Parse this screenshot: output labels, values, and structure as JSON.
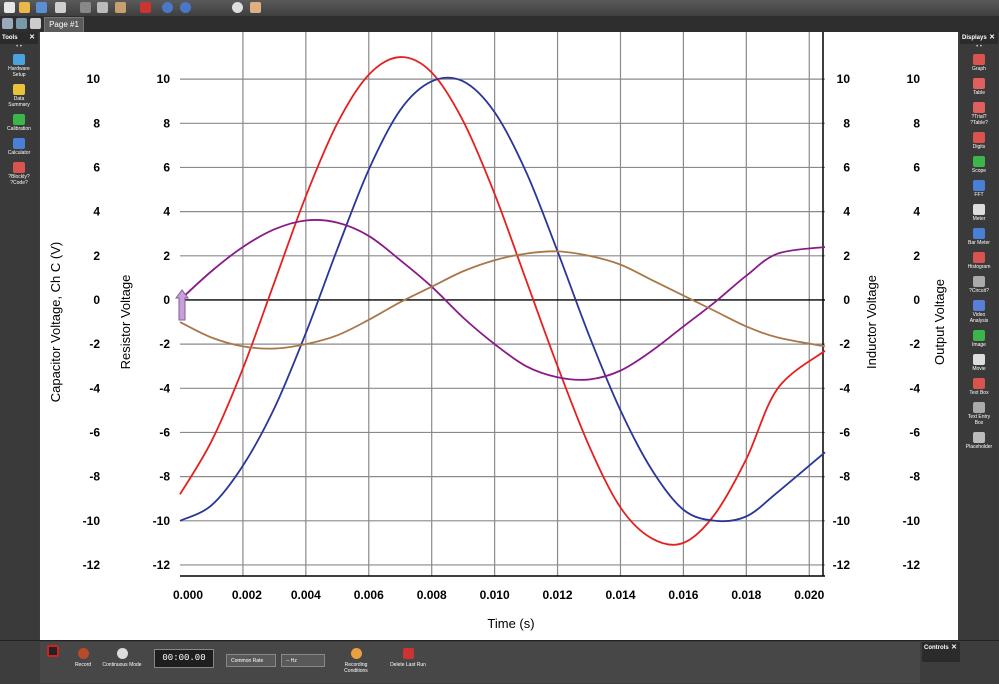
{
  "tabs": {
    "page": "Page #1"
  },
  "tools": {
    "title": "Tools",
    "close": "✕",
    "items": [
      {
        "label1": "Hardware",
        "label2": "Setup",
        "icon": "hardware-setup-icon",
        "color": "#4aa3df"
      },
      {
        "label1": "Data",
        "label2": "Summary",
        "icon": "data-summary-icon",
        "color": "#e8c33a"
      },
      {
        "label1": "Calibration",
        "label2": "",
        "icon": "calibration-icon",
        "color": "#3cb54a"
      },
      {
        "label1": "Calculator",
        "label2": "",
        "icon": "calculator-icon",
        "color": "#4a7fd6"
      },
      {
        "label1": "?Blockly?",
        "label2": "?Code?",
        "icon": "blockly-icon",
        "color": "#d9534f"
      }
    ]
  },
  "displays": {
    "title": "Displays",
    "close": "✕",
    "items": [
      {
        "label1": "Graph",
        "label2": "",
        "icon": "graph-icon",
        "color": "#d9534f"
      },
      {
        "label1": "Table",
        "label2": "",
        "icon": "table-icon",
        "color": "#e06060"
      },
      {
        "label1": "?Trial?",
        "label2": "?Table?",
        "icon": "trial-table-icon",
        "color": "#e06060"
      },
      {
        "label1": "Digits",
        "label2": "",
        "icon": "digits-icon",
        "color": "#d9534f"
      },
      {
        "label1": "Scope",
        "label2": "",
        "icon": "scope-icon",
        "color": "#3cb54a"
      },
      {
        "label1": "FFT",
        "label2": "",
        "icon": "fft-icon",
        "color": "#4a7fd6"
      },
      {
        "label1": "Meter",
        "label2": "",
        "icon": "meter-icon",
        "color": "#dddddd"
      },
      {
        "label1": "Bar Meter",
        "label2": "",
        "icon": "bar-meter-icon",
        "color": "#4a7fd6"
      },
      {
        "label1": "Histogram",
        "label2": "",
        "icon": "histogram-icon",
        "color": "#d9534f"
      },
      {
        "label1": "?Circuit?",
        "label2": "",
        "icon": "circuit-icon",
        "color": "#aaaaaa"
      },
      {
        "label1": "Video",
        "label2": "Analysis",
        "icon": "video-analysis-icon",
        "color": "#5a7fd6"
      },
      {
        "label1": "Image",
        "label2": "",
        "icon": "image-icon",
        "color": "#3cb54a"
      },
      {
        "label1": "Movie",
        "label2": "",
        "icon": "movie-icon",
        "color": "#dddddd"
      },
      {
        "label1": "Text Box",
        "label2": "",
        "icon": "text-box-icon",
        "color": "#d9534f"
      },
      {
        "label1": "Text Entry",
        "label2": "Box",
        "icon": "text-entry-icon",
        "color": "#aaaaaa"
      },
      {
        "label1": "Placeholder",
        "label2": "",
        "icon": "placeholder-icon",
        "color": "#bbbbbb"
      }
    ]
  },
  "controls": {
    "title": "Controls",
    "record": "Record",
    "mode": "Continuous Mode",
    "time": "00:00.00",
    "rate": "Common Rate",
    "hz": "-- Hz",
    "conditions1": "Recording",
    "conditions2": "Conditions",
    "delete": "Delete Last Run"
  },
  "chart_data": {
    "type": "line",
    "xlabel": "Time (s)",
    "ylabel_left_outer": "Capacitor Voltage, Ch C (V)",
    "ylabel_left_inner": "Resistor Voltage",
    "ylabel_right_inner": "Inductor Voltage",
    "ylabel_right_outer": "Output Voltage",
    "xlim": [
      0.0,
      0.0205
    ],
    "ylim": [
      -12.5,
      11.5
    ],
    "x_ticks": [
      "0.000",
      "0.002",
      "0.004",
      "0.006",
      "0.008",
      "0.010",
      "0.012",
      "0.014",
      "0.016",
      "0.018",
      "0.020"
    ],
    "y_ticks": [
      10,
      8,
      6,
      4,
      2,
      0,
      -2,
      -4,
      -6,
      -8,
      -10,
      -12
    ],
    "grid": true,
    "series": [
      {
        "color": "#e62020",
        "x": [
          0.0,
          0.001,
          0.002,
          0.003,
          0.004,
          0.005,
          0.006,
          0.007,
          0.008,
          0.009,
          0.01,
          0.011,
          0.012,
          0.013,
          0.014,
          0.015,
          0.016,
          0.017,
          0.018,
          0.019,
          0.0205
        ],
        "values": [
          -8.8,
          -6.4,
          -3.1,
          0.8,
          4.7,
          8.0,
          10.2,
          11.0,
          10.3,
          8.1,
          4.8,
          0.9,
          -3.0,
          -6.6,
          -9.4,
          -10.8,
          -11.0,
          -9.7,
          -7.2,
          -4.0,
          -2.3
        ]
      },
      {
        "color": "#2a3699",
        "x": [
          0.0,
          0.001,
          0.002,
          0.003,
          0.004,
          0.005,
          0.006,
          0.007,
          0.008,
          0.009,
          0.01,
          0.011,
          0.012,
          0.013,
          0.014,
          0.015,
          0.016,
          0.017,
          0.018,
          0.019,
          0.0205
        ],
        "values": [
          -10.0,
          -9.3,
          -7.5,
          -4.9,
          -1.5,
          2.3,
          5.9,
          8.6,
          9.9,
          9.9,
          8.5,
          5.8,
          2.2,
          -1.6,
          -5.0,
          -7.7,
          -9.5,
          -10.0,
          -9.8,
          -8.7,
          -6.9
        ]
      },
      {
        "color": "#8a1a8a",
        "x": [
          0.0,
          0.001,
          0.002,
          0.003,
          0.004,
          0.005,
          0.006,
          0.007,
          0.008,
          0.009,
          0.01,
          0.011,
          0.012,
          0.013,
          0.014,
          0.015,
          0.016,
          0.017,
          0.018,
          0.019,
          0.0205
        ],
        "values": [
          0.0,
          1.3,
          2.4,
          3.2,
          3.6,
          3.5,
          2.9,
          1.8,
          0.6,
          -0.8,
          -2.0,
          -3.0,
          -3.5,
          -3.6,
          -3.2,
          -2.3,
          -1.2,
          -0.1,
          1.1,
          2.1,
          2.4
        ]
      },
      {
        "color": "#a8784a",
        "x": [
          0.0,
          0.001,
          0.002,
          0.003,
          0.004,
          0.005,
          0.006,
          0.007,
          0.008,
          0.009,
          0.01,
          0.011,
          0.012,
          0.013,
          0.014,
          0.015,
          0.016,
          0.017,
          0.018,
          0.019,
          0.0205
        ],
        "values": [
          -1.0,
          -1.7,
          -2.1,
          -2.2,
          -2.0,
          -1.6,
          -0.9,
          -0.1,
          0.6,
          1.3,
          1.8,
          2.1,
          2.2,
          2.0,
          1.6,
          0.9,
          0.2,
          -0.5,
          -1.2,
          -1.7,
          -2.1
        ]
      }
    ]
  }
}
